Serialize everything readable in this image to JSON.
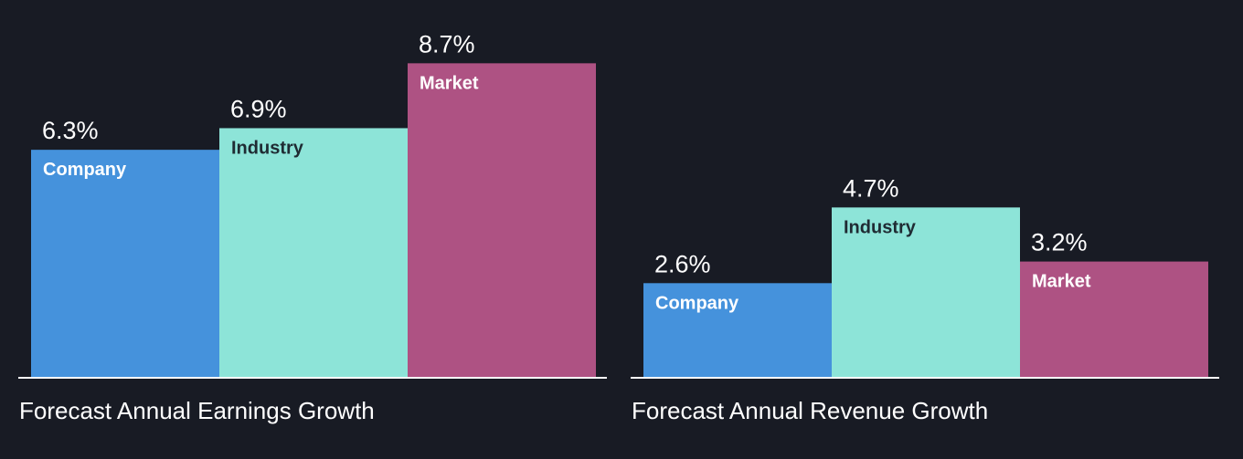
{
  "colors": {
    "background": "#181b24",
    "company": "#4592dc",
    "industry": "#8de4d8",
    "market": "#ae5283",
    "text": "#ffffff",
    "dark_label": "#1f2b33",
    "baseline": "#ffffff"
  },
  "chart_data": [
    {
      "type": "bar",
      "title": "Forecast Annual Earnings Growth",
      "categories": [
        "Company",
        "Industry",
        "Market"
      ],
      "values": [
        6.3,
        6.9,
        8.7
      ],
      "value_labels": [
        "6.3%",
        "6.9%",
        "8.7%"
      ],
      "unit": "%",
      "ylim": [
        0,
        10
      ],
      "grid": false,
      "legend": "none"
    },
    {
      "type": "bar",
      "title": "Forecast Annual Revenue Growth",
      "categories": [
        "Company",
        "Industry",
        "Market"
      ],
      "values": [
        2.6,
        4.7,
        3.2
      ],
      "value_labels": [
        "2.6%",
        "4.7%",
        "3.2%"
      ],
      "unit": "%",
      "ylim": [
        0,
        10
      ],
      "grid": false,
      "legend": "none"
    }
  ]
}
